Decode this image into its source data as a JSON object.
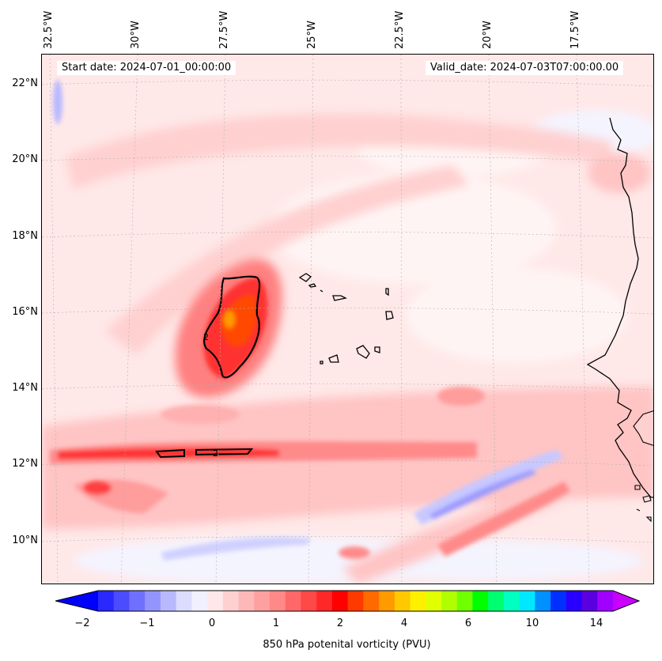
{
  "header": {
    "start_date": "Start date: 2024-07-01_00:00:00",
    "valid_date": "Valid_date: 2024-07-03T07:00:00.00"
  },
  "longitude_labels": [
    "32.5°W",
    "30°W",
    "27.5°W",
    "25°W",
    "22.5°W",
    "20°W",
    "17.5°W"
  ],
  "latitude_labels": [
    "22°N",
    "20°N",
    "18°N",
    "16°N",
    "14°N",
    "12°N",
    "10°N"
  ],
  "contour_labels": [
    "2",
    "2"
  ],
  "colorbar": {
    "label": "850 hPa potenital vorticity (PVU)",
    "ticks": [
      "−2",
      "−1",
      "0",
      "1",
      "2",
      "4",
      "6",
      "10",
      "14"
    ],
    "colors": [
      "#0000ff",
      "#2828ff",
      "#4c4cff",
      "#7070ff",
      "#9494ff",
      "#b8b8ff",
      "#dcdcff",
      "#f0f0ff",
      "#ffe8e8",
      "#ffd0d0",
      "#ffb8b8",
      "#ffa0a0",
      "#ff8888",
      "#ff6868",
      "#ff4848",
      "#ff2828",
      "#ff0000",
      "#ff3a00",
      "#ff6a00",
      "#ff9a00",
      "#ffc800",
      "#fff000",
      "#e0ff00",
      "#b0ff00",
      "#70ff00",
      "#00ff00",
      "#00ff70",
      "#00ffc0",
      "#00e8ff",
      "#0090ff",
      "#0030ff",
      "#2800ff",
      "#5a00e0",
      "#a000ff",
      "#c800ff"
    ]
  }
}
